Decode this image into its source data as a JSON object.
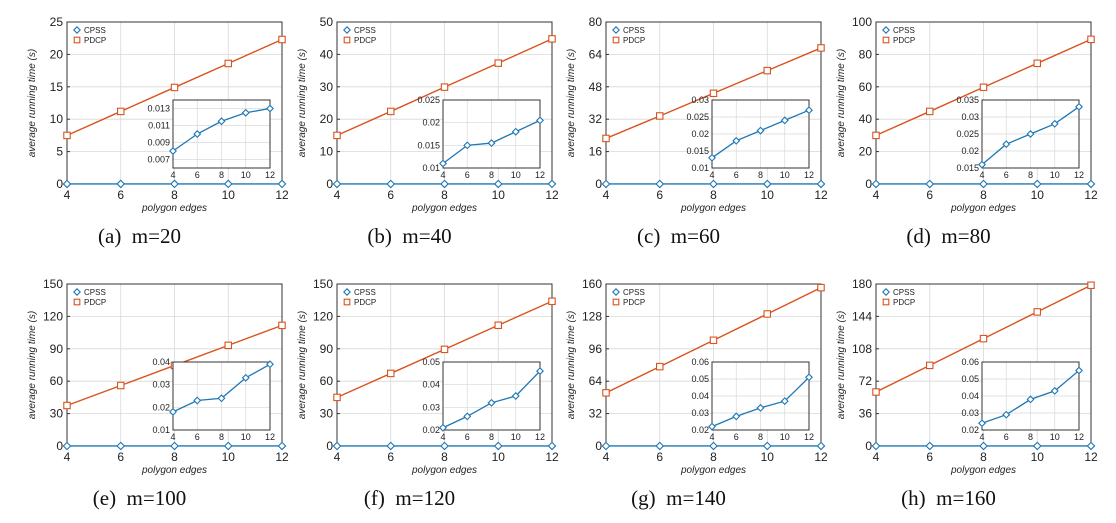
{
  "figure": {
    "colors": {
      "CPSS": "#1f77b4",
      "PDCP": "#d9531e"
    },
    "markers": {
      "CPSS": "diamond",
      "PDCP": "square"
    }
  },
  "chart_data": [
    {
      "type": "line",
      "caption": "(a)  m=20",
      "xlabel": "polygon edges",
      "ylabel": "average running time (s)",
      "x": [
        4,
        6,
        8,
        10,
        12
      ],
      "xticks": [
        4,
        6,
        8,
        10,
        12
      ],
      "ylim": [
        0,
        25
      ],
      "yticks": [
        0,
        5,
        10,
        15,
        20,
        25
      ],
      "grid": true,
      "legend": "top-left",
      "series": [
        {
          "name": "CPSS",
          "values": [
            0.008,
            0.01,
            0.0115,
            0.0125,
            0.013
          ]
        },
        {
          "name": "PDCP",
          "values": [
            7.5,
            11.2,
            14.9,
            18.6,
            22.3
          ]
        }
      ],
      "inset": {
        "series": "CPSS",
        "xlim": [
          4,
          12
        ],
        "xticks": [
          4,
          6,
          8,
          10,
          12
        ],
        "ylim": [
          0.006,
          0.014
        ],
        "yticks": [
          0.007,
          0.009,
          0.011,
          0.013
        ],
        "values": [
          0.008,
          0.01,
          0.0115,
          0.0125,
          0.013
        ]
      }
    },
    {
      "type": "line",
      "caption": "(b)  m=40",
      "xlabel": "polygon edges",
      "ylabel": "average running time (s)",
      "x": [
        4,
        6,
        8,
        10,
        12
      ],
      "xticks": [
        4,
        6,
        8,
        10,
        12
      ],
      "ylim": [
        0,
        50
      ],
      "yticks": [
        0,
        10,
        20,
        30,
        40,
        50
      ],
      "grid": true,
      "legend": "top-left",
      "series": [
        {
          "name": "CPSS",
          "values": [
            0.011,
            0.015,
            0.0155,
            0.018,
            0.0205
          ]
        },
        {
          "name": "PDCP",
          "values": [
            15.0,
            22.4,
            29.9,
            37.3,
            44.8
          ]
        }
      ],
      "inset": {
        "series": "CPSS",
        "xlim": [
          4,
          12
        ],
        "xticks": [
          4,
          6,
          8,
          10,
          12
        ],
        "ylim": [
          0.01,
          0.025
        ],
        "yticks": [
          0.01,
          0.015,
          0.02,
          0.025
        ],
        "values": [
          0.011,
          0.015,
          0.0155,
          0.018,
          0.0205
        ]
      }
    },
    {
      "type": "line",
      "caption": "(c)  m=60",
      "xlabel": "polygon edges",
      "ylabel": "average running time (s)",
      "x": [
        4,
        6,
        8,
        10,
        12
      ],
      "xticks": [
        4,
        6,
        8,
        10,
        12
      ],
      "ylim": [
        0,
        80
      ],
      "yticks": [
        0,
        16,
        32,
        48,
        64,
        80
      ],
      "grid": true,
      "legend": "top-left",
      "series": [
        {
          "name": "CPSS",
          "values": [
            0.013,
            0.018,
            0.021,
            0.024,
            0.027
          ]
        },
        {
          "name": "PDCP",
          "values": [
            22.5,
            33.6,
            44.8,
            56.0,
            67.2
          ]
        }
      ],
      "inset": {
        "series": "CPSS",
        "xlim": [
          4,
          12
        ],
        "xticks": [
          4,
          6,
          8,
          10,
          12
        ],
        "ylim": [
          0.01,
          0.03
        ],
        "yticks": [
          0.01,
          0.015,
          0.02,
          0.025,
          0.03
        ],
        "values": [
          0.013,
          0.018,
          0.021,
          0.024,
          0.027
        ]
      }
    },
    {
      "type": "line",
      "caption": "(d)  m=80",
      "xlabel": "polygon edges",
      "ylabel": "average running time (s)",
      "x": [
        4,
        6,
        8,
        10,
        12
      ],
      "xticks": [
        4,
        6,
        8,
        10,
        12
      ],
      "ylim": [
        0,
        100
      ],
      "yticks": [
        0,
        20,
        40,
        60,
        80,
        100
      ],
      "grid": true,
      "legend": "top-left",
      "series": [
        {
          "name": "CPSS",
          "values": [
            0.016,
            0.022,
            0.025,
            0.028,
            0.033
          ]
        },
        {
          "name": "PDCP",
          "values": [
            30.0,
            44.8,
            59.7,
            74.5,
            89.3
          ]
        }
      ],
      "inset": {
        "series": "CPSS",
        "xlim": [
          4,
          12
        ],
        "xticks": [
          4,
          6,
          8,
          10,
          12
        ],
        "ylim": [
          0.015,
          0.035
        ],
        "yticks": [
          0.015,
          0.02,
          0.025,
          0.03,
          0.035
        ],
        "values": [
          0.016,
          0.022,
          0.025,
          0.028,
          0.033
        ]
      }
    },
    {
      "type": "line",
      "caption": "(e)  m=100",
      "xlabel": "polygon edges",
      "ylabel": "average running time (s)",
      "x": [
        4,
        6,
        8,
        10,
        12
      ],
      "xticks": [
        4,
        6,
        8,
        10,
        12
      ],
      "ylim": [
        0,
        150
      ],
      "yticks": [
        0,
        30,
        60,
        90,
        120,
        150
      ],
      "grid": true,
      "legend": "top-left",
      "series": [
        {
          "name": "CPSS",
          "values": [
            0.018,
            0.023,
            0.024,
            0.033,
            0.039
          ]
        },
        {
          "name": "PDCP",
          "values": [
            37.5,
            56.0,
            74.6,
            93.2,
            111.7
          ]
        }
      ],
      "inset": {
        "series": "CPSS",
        "xlim": [
          4,
          12
        ],
        "xticks": [
          4,
          6,
          8,
          10,
          12
        ],
        "ylim": [
          0.01,
          0.04
        ],
        "yticks": [
          0.01,
          0.02,
          0.03,
          0.04
        ],
        "values": [
          0.018,
          0.023,
          0.024,
          0.033,
          0.039
        ]
      }
    },
    {
      "type": "line",
      "caption": "(f)  m=120",
      "xlabel": "polygon edges",
      "ylabel": "average running time (s)",
      "x": [
        4,
        6,
        8,
        10,
        12
      ],
      "xticks": [
        4,
        6,
        8,
        10,
        12
      ],
      "ylim": [
        0,
        150
      ],
      "yticks": [
        0,
        30,
        60,
        90,
        120,
        150
      ],
      "grid": true,
      "legend": "top-left",
      "series": [
        {
          "name": "CPSS",
          "values": [
            0.021,
            0.026,
            0.032,
            0.035,
            0.046
          ]
        },
        {
          "name": "PDCP",
          "values": [
            45.0,
            67.2,
            89.5,
            111.8,
            134.0
          ]
        }
      ],
      "inset": {
        "series": "CPSS",
        "xlim": [
          4,
          12
        ],
        "xticks": [
          4,
          6,
          8,
          10,
          12
        ],
        "ylim": [
          0.02,
          0.05
        ],
        "yticks": [
          0.02,
          0.03,
          0.04,
          0.05
        ],
        "values": [
          0.021,
          0.026,
          0.032,
          0.035,
          0.046
        ]
      }
    },
    {
      "type": "line",
      "caption": "(g)  m=140",
      "xlabel": "polygon edges",
      "ylabel": "average running time (s)",
      "x": [
        4,
        6,
        8,
        10,
        12
      ],
      "xticks": [
        4,
        6,
        8,
        10,
        12
      ],
      "ylim": [
        0,
        160
      ],
      "yticks": [
        0,
        32,
        64,
        96,
        128,
        160
      ],
      "grid": true,
      "legend": "top-left",
      "series": [
        {
          "name": "CPSS",
          "values": [
            0.022,
            0.028,
            0.033,
            0.037,
            0.051
          ]
        },
        {
          "name": "PDCP",
          "values": [
            52.5,
            78.4,
            104.4,
            130.4,
            156.4
          ]
        }
      ],
      "inset": {
        "series": "CPSS",
        "xlim": [
          4,
          12
        ],
        "xticks": [
          4,
          6,
          8,
          10,
          12
        ],
        "ylim": [
          0.02,
          0.06
        ],
        "yticks": [
          0.02,
          0.03,
          0.04,
          0.05,
          0.06
        ],
        "values": [
          0.022,
          0.028,
          0.033,
          0.037,
          0.051
        ]
      }
    },
    {
      "type": "line",
      "caption": "(h)  m=160",
      "xlabel": "polygon edges",
      "ylabel": "average running time (s)",
      "x": [
        4,
        6,
        8,
        10,
        12
      ],
      "xticks": [
        4,
        6,
        8,
        10,
        12
      ],
      "ylim": [
        0,
        180
      ],
      "yticks": [
        0,
        36,
        72,
        108,
        144,
        180
      ],
      "grid": true,
      "legend": "top-left",
      "series": [
        {
          "name": "CPSS",
          "values": [
            0.024,
            0.029,
            0.038,
            0.043,
            0.055
          ]
        },
        {
          "name": "PDCP",
          "values": [
            60.0,
            89.6,
            119.3,
            149.0,
            178.6
          ]
        }
      ],
      "inset": {
        "series": "CPSS",
        "xlim": [
          4,
          12
        ],
        "xticks": [
          4,
          6,
          8,
          10,
          12
        ],
        "ylim": [
          0.02,
          0.06
        ],
        "yticks": [
          0.02,
          0.03,
          0.04,
          0.05,
          0.06
        ],
        "values": [
          0.024,
          0.029,
          0.038,
          0.043,
          0.055
        ]
      }
    }
  ]
}
